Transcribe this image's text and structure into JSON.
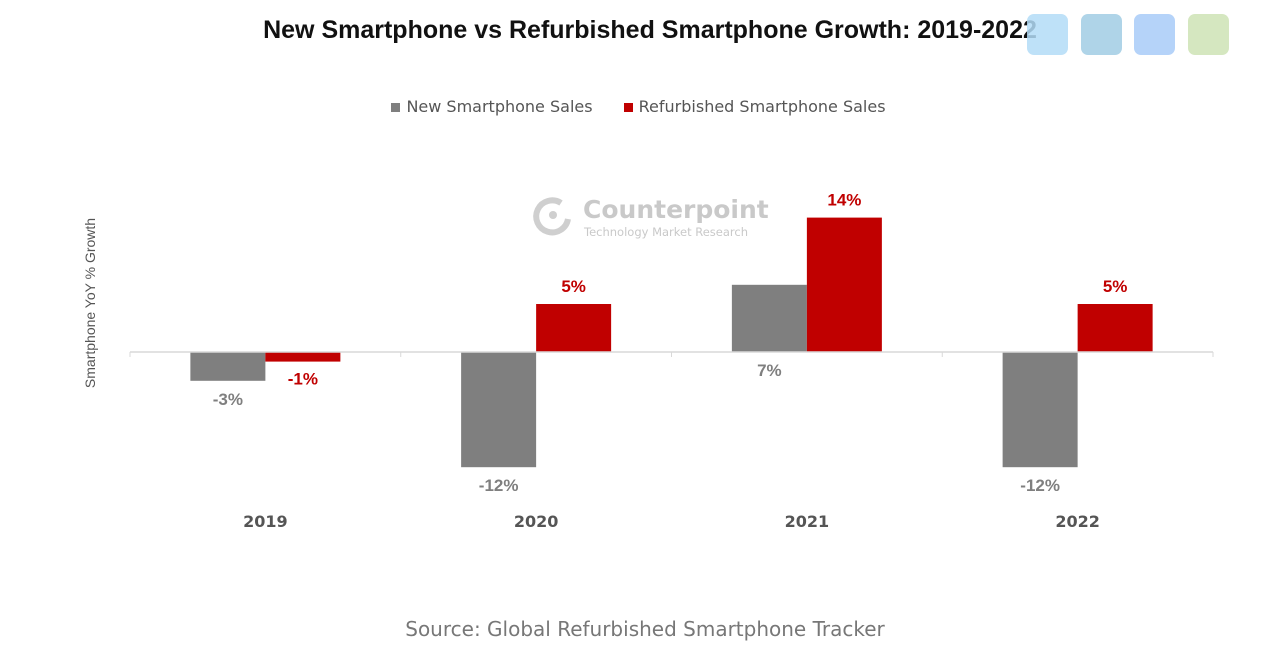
{
  "chart_data": {
    "type": "bar",
    "title": "New Smartphone vs Refurbished Smartphone Growth: 2019-2022",
    "ylabel": "Smartphone YoY % Growth",
    "xlabel": "",
    "categories": [
      "2019",
      "2020",
      "2021",
      "2022"
    ],
    "series": [
      {
        "name": "New Smartphone Sales",
        "values": [
          -3,
          -12,
          7,
          -12
        ],
        "labels": [
          "-3%",
          "-12%",
          "7%",
          "-12%"
        ],
        "color": "#7f7f7f"
      },
      {
        "name": "Refurbished Smartphone Sales",
        "values": [
          -1,
          5,
          14,
          5
        ],
        "labels": [
          "-1%",
          "5%",
          "14%",
          "5%"
        ],
        "color": "#c00000"
      }
    ],
    "ylim": [
      -14,
      16
    ],
    "grid": false,
    "legend_position": "top"
  },
  "watermark": {
    "brand": "Counterpoint",
    "tagline": "Technology Market Research"
  },
  "source": "Source: Global Refurbished Smartphone Tracker",
  "overlay_swatches": [
    "#b3dcf7",
    "#afd4e8",
    "#b5d3f9",
    "#d5e7c0"
  ]
}
